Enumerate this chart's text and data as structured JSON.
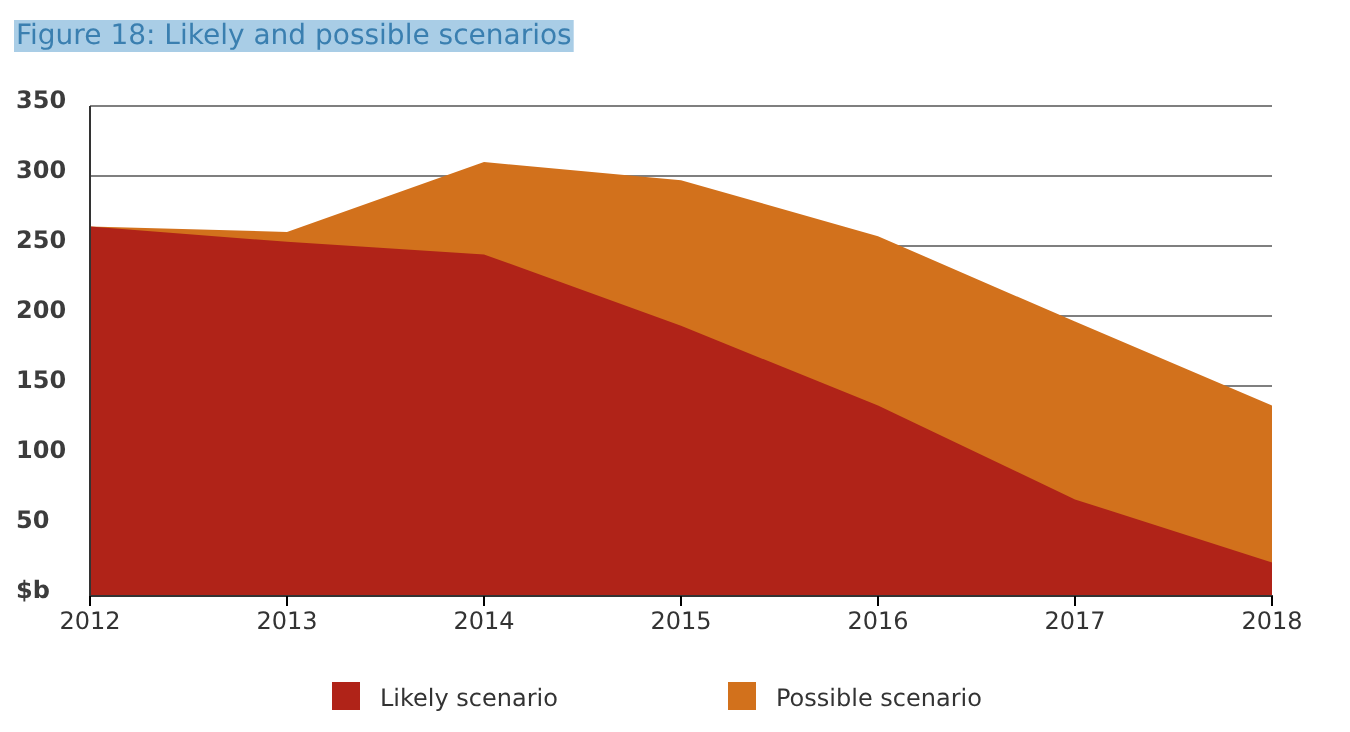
{
  "chart_data": {
    "type": "area",
    "title": "Figure 18: Likely and possible scenarios",
    "x": [
      2012,
      2013,
      2014,
      2015,
      2016,
      2017,
      2018
    ],
    "xlim": [
      2012,
      2018
    ],
    "xticks": [
      2012,
      2013,
      2014,
      2015,
      2016,
      2017,
      2018
    ],
    "ylim": [
      0,
      350
    ],
    "yticks": [
      {
        "value": 0,
        "label": "$b"
      },
      50,
      100,
      150,
      200,
      250,
      300,
      350
    ],
    "grid": "y",
    "legend": "bottom",
    "series": [
      {
        "name": "Likely scenario",
        "color": "#b02318",
        "values": [
          264,
          253,
          244,
          193,
          136,
          69,
          24
        ]
      },
      {
        "name": "Possible scenario",
        "color": "#d2711c",
        "values": [
          264,
          260,
          310,
          297,
          257,
          196,
          136
        ]
      }
    ]
  }
}
